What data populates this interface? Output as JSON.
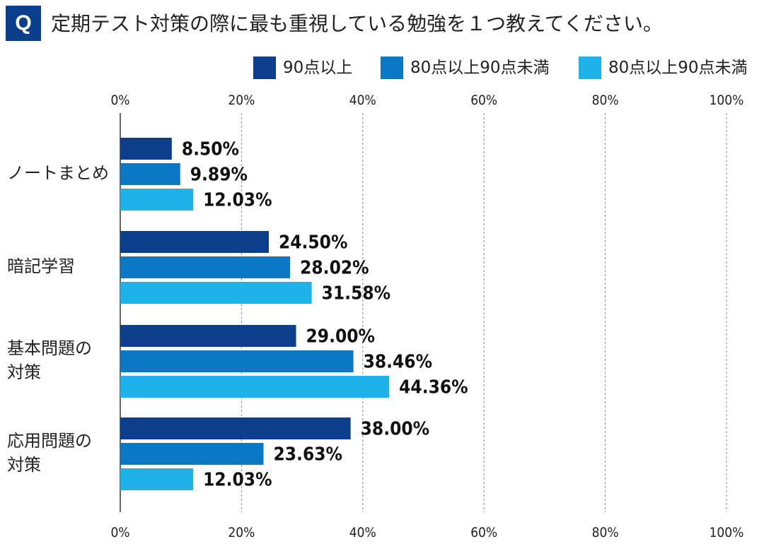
{
  "question_badge": "Q",
  "question": "定期テスト対策の際に最も重視している勉強を１つ教えてください。",
  "colors": {
    "badge": "#0b3f8c",
    "series": [
      "#0b3f8c",
      "#0a78c4",
      "#1fb2ea"
    ]
  },
  "chart_data": {
    "type": "bar",
    "orientation": "horizontal",
    "title": "",
    "categories": [
      "ノートまとめ",
      "暗記学習",
      "基本問題の対策",
      "応用問題の対策"
    ],
    "category_lines": [
      [
        "ノートまとめ"
      ],
      [
        "暗記学習"
      ],
      [
        "基本問題の",
        "対策"
      ],
      [
        "応用問題の",
        "対策"
      ]
    ],
    "series": [
      {
        "name": "90点以上",
        "values": [
          8.5,
          24.5,
          29.0,
          38.0
        ],
        "labels": [
          "8.50%",
          "24.50%",
          "29.00%",
          "38.00%"
        ]
      },
      {
        "name": "80点以上90点未満",
        "values": [
          9.89,
          28.02,
          38.46,
          23.63
        ],
        "labels": [
          "9.89%",
          "28.02%",
          "38.46%",
          "23.63%"
        ]
      },
      {
        "name": "80点以上90点未満",
        "values": [
          12.03,
          31.58,
          44.36,
          12.03
        ],
        "labels": [
          "12.03%",
          "31.58%",
          "44.36%",
          "12.03%"
        ]
      }
    ],
    "xlim": [
      0,
      100
    ],
    "ticks": [
      "0%",
      "20%",
      "40%",
      "60%",
      "80%",
      "100%"
    ],
    "tick_values": [
      0,
      20,
      40,
      60,
      80,
      100
    ],
    "grid": true,
    "legend": "top-right",
    "axis_labels_position": "top and bottom"
  }
}
